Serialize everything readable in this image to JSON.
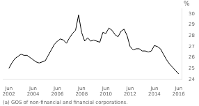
{
  "chart_data": {
    "type": "line",
    "ylabel": "%",
    "footnote": "(a) GOS of non-financial and financial corporations.",
    "color": "#000000",
    "grid": false,
    "x": [
      2002.5,
      2002.75,
      2003.0,
      2003.25,
      2003.5,
      2003.75,
      2004.0,
      2004.25,
      2004.5,
      2004.75,
      2005.0,
      2005.25,
      2005.5,
      2005.75,
      2006.0,
      2006.25,
      2006.5,
      2006.75,
      2007.0,
      2007.25,
      2007.5,
      2007.75,
      2008.0,
      2008.25,
      2008.5,
      2008.75,
      2009.0,
      2009.25,
      2009.5,
      2009.75,
      2010.0,
      2010.25,
      2010.5,
      2010.75,
      2011.0,
      2011.25,
      2011.5,
      2011.75,
      2012.0,
      2012.25,
      2012.5,
      2012.75,
      2013.0,
      2013.25,
      2013.5,
      2013.75,
      2014.0,
      2014.25,
      2014.5,
      2014.75,
      2015.0,
      2015.25,
      2015.5,
      2015.75,
      2016.0,
      2016.25,
      2016.5
    ],
    "values": [
      25.0,
      25.5,
      25.9,
      26.1,
      26.3,
      26.2,
      26.2,
      26.0,
      25.8,
      25.6,
      25.5,
      25.6,
      25.7,
      26.2,
      26.7,
      27.2,
      27.5,
      27.7,
      27.6,
      27.3,
      27.8,
      28.2,
      28.5,
      29.9,
      28.3,
      27.5,
      27.8,
      27.5,
      27.6,
      27.5,
      27.4,
      28.3,
      28.2,
      28.7,
      28.5,
      28.1,
      27.9,
      28.4,
      28.6,
      28.0,
      27.0,
      26.7,
      26.8,
      26.8,
      26.6,
      26.6,
      26.5,
      26.6,
      27.1,
      27.0,
      26.8,
      26.3,
      25.8,
      25.4,
      25.1,
      24.8,
      24.5
    ],
    "xlim": [
      2002.0,
      2016.75
    ],
    "xticks": [
      {
        "value": 2002.5,
        "label": "Jun\n2002"
      },
      {
        "value": 2004.5,
        "label": "Jun\n2004"
      },
      {
        "value": 2006.5,
        "label": "Jun\n2006"
      },
      {
        "value": 2008.5,
        "label": "Jun\n2008"
      },
      {
        "value": 2010.5,
        "label": "Jun\n2010"
      },
      {
        "value": 2012.5,
        "label": "Jun\n2012"
      },
      {
        "value": 2014.5,
        "label": "Jun\n2014"
      },
      {
        "value": 2016.5,
        "label": "Jun\n2016"
      }
    ],
    "ylim": [
      24,
      30.5
    ],
    "yticks": [
      24,
      25,
      26,
      27,
      28,
      29,
      30
    ]
  }
}
